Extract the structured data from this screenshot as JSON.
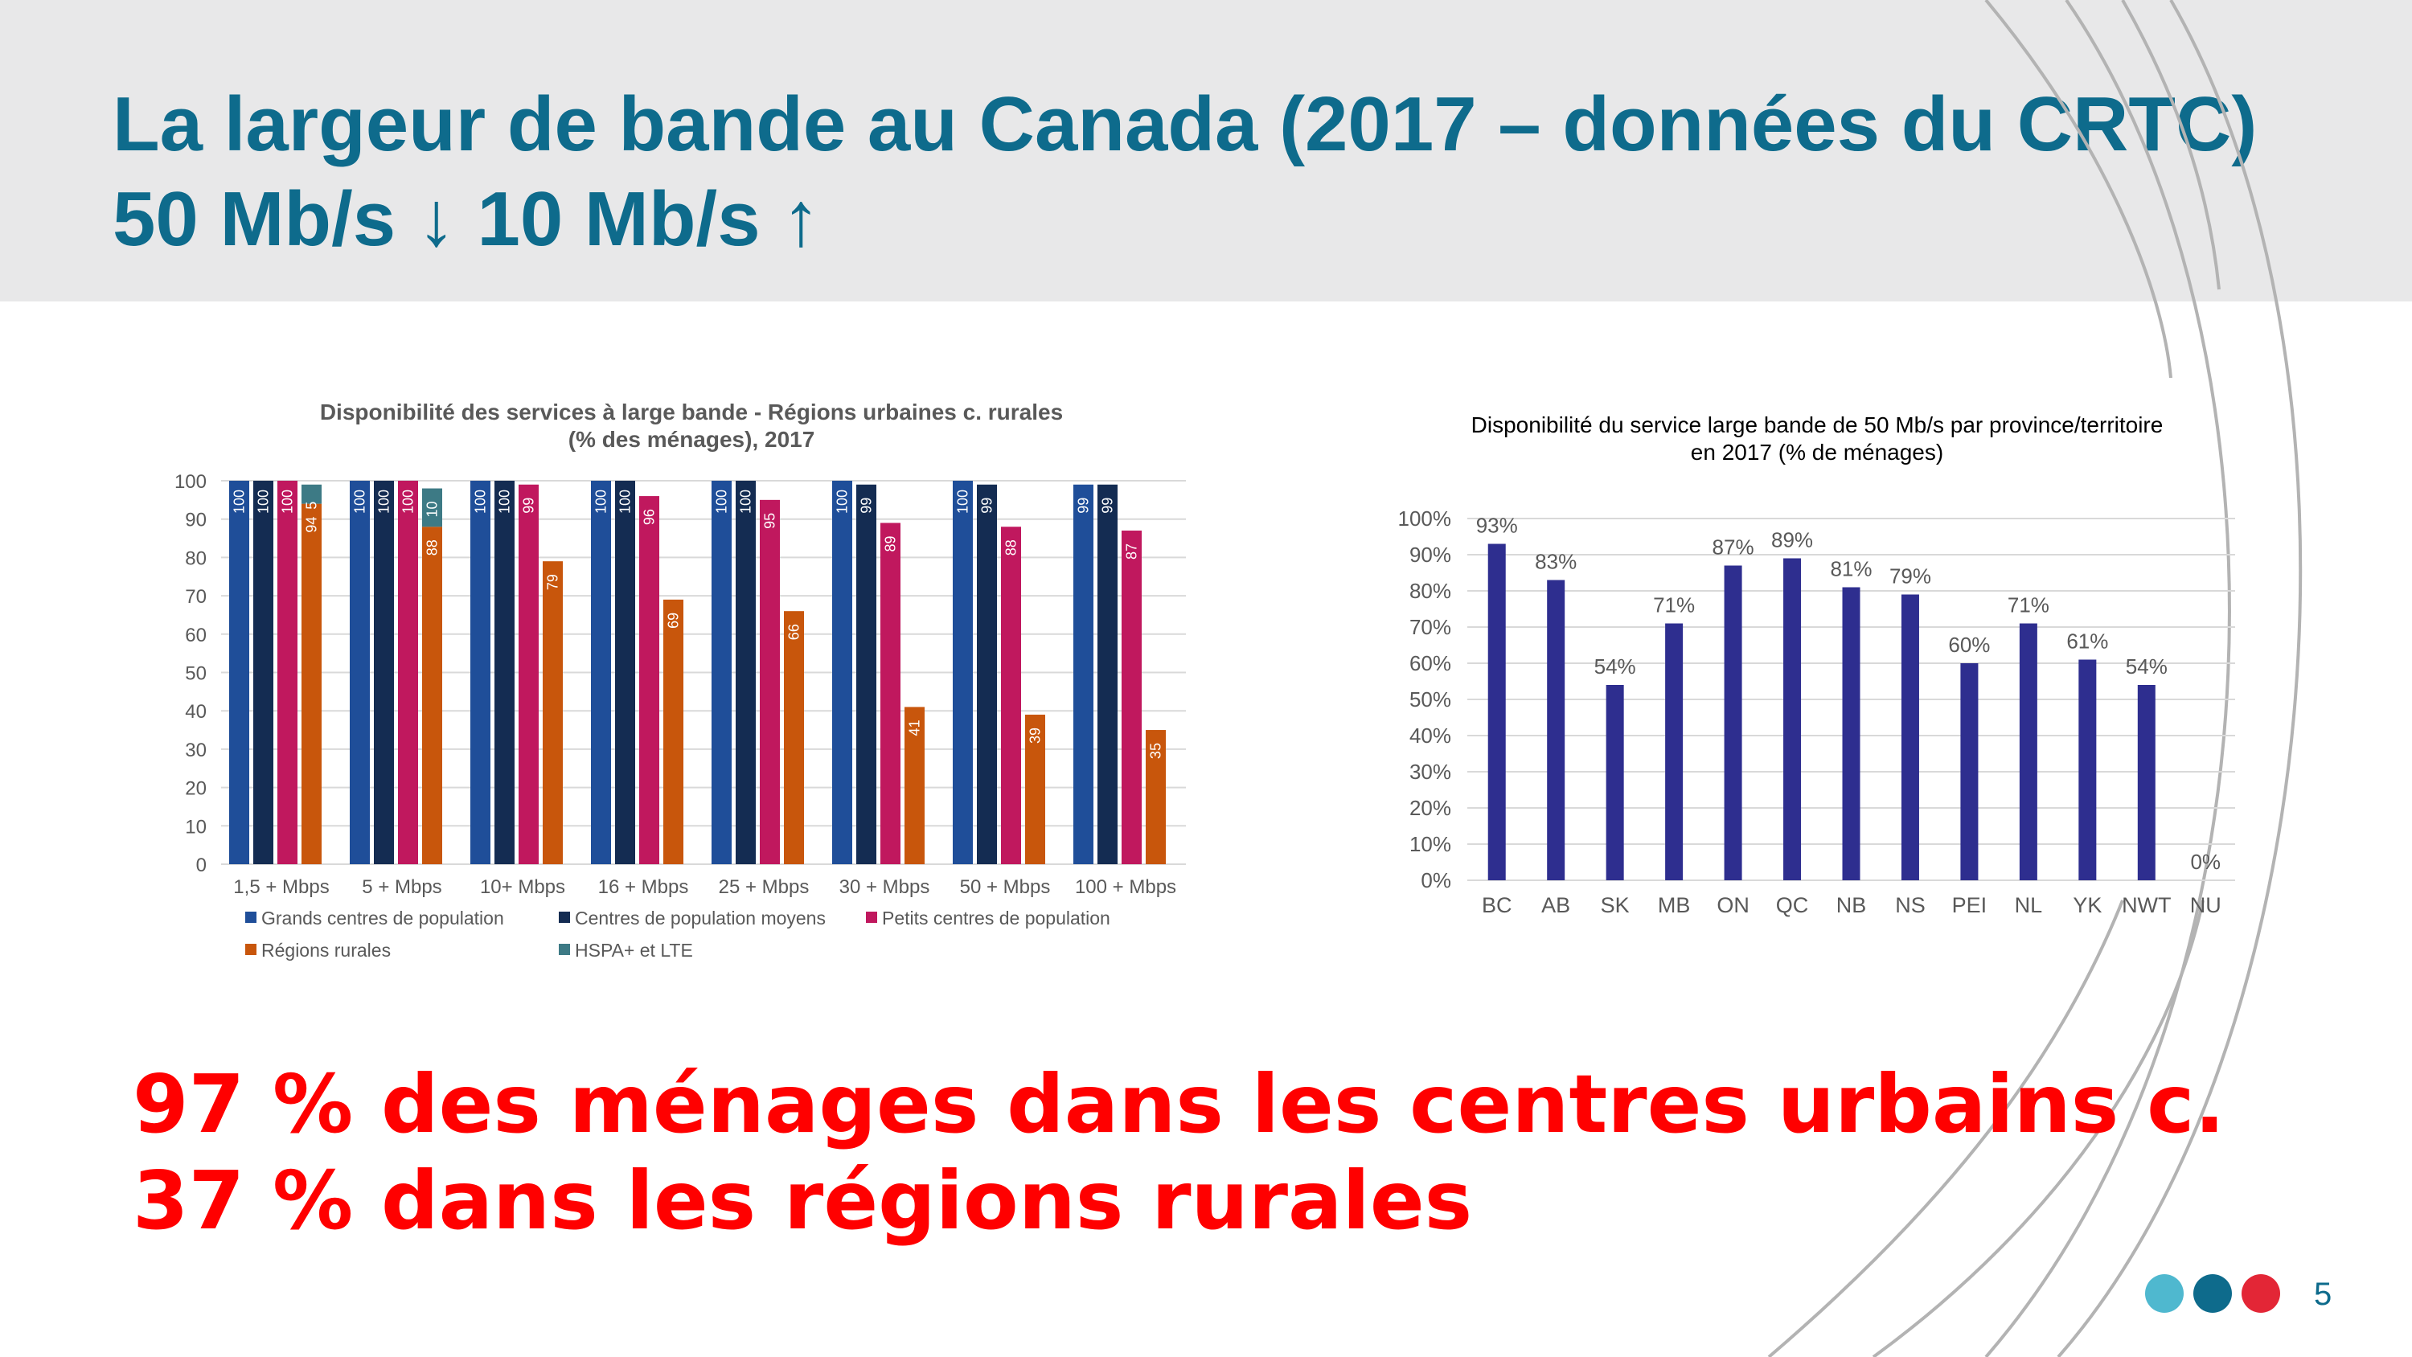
{
  "slide": {
    "title_line1": "La largeur de bande au Canada (2017 – données du CRTC)",
    "title_line2": "50 Mb/s ↓ 10 Mb/s ↑",
    "conclusion_line1": "97 % des ménages dans les centres urbains c.",
    "conclusion_line2": "37 % dans les régions rurales",
    "page_number": "5",
    "colors": {
      "title": "#0e6b8c",
      "header_bg": "#e8e8e9",
      "conclusion": "#ff0000",
      "dots": [
        "#4fb8cf",
        "#0e6b8c",
        "#e32636"
      ]
    }
  },
  "chart_data": [
    {
      "type": "bar",
      "title_line1": "Disponibilité des services à large bande - Régions urbaines c. rurales",
      "title_line2": "(% des ménages), 2017",
      "categories": [
        "1,5 + Mbps",
        "5 + Mbps",
        "10+ Mbps",
        "16 + Mbps",
        "25 + Mbps",
        "30 + Mbps",
        "50 + Mbps",
        "100 + Mbps"
      ],
      "ylim": [
        0,
        100
      ],
      "yticks": [
        0,
        10,
        20,
        30,
        40,
        50,
        60,
        70,
        80,
        90,
        100
      ],
      "grid": true,
      "legend_position": "bottom",
      "series": [
        {
          "name": "Grands centres de population",
          "color": "#1f4e99",
          "values": [
            100,
            100,
            100,
            100,
            100,
            100,
            100,
            99
          ]
        },
        {
          "name": "Centres de population moyens",
          "color": "#142c52",
          "values": [
            100,
            100,
            100,
            100,
            100,
            99,
            99,
            99
          ]
        },
        {
          "name": "Petits centres de population",
          "color": "#c0185e",
          "values": [
            100,
            100,
            99,
            96,
            95,
            89,
            88,
            87
          ]
        },
        {
          "name": "Régions rurales",
          "color": "#c8560c",
          "values": [
            94,
            88,
            79,
            69,
            66,
            41,
            39,
            35
          ]
        },
        {
          "name": "HSPA+ et LTE",
          "color": "#3d7a85",
          "values": [
            5,
            10,
            null,
            null,
            null,
            null,
            null,
            null
          ]
        }
      ]
    },
    {
      "type": "bar",
      "title_line1": "Disponibilité du service large bande de 50 Mb/s par province/territoire",
      "title_line2": "en 2017 (% de ménages)",
      "categories": [
        "BC",
        "AB",
        "SK",
        "MB",
        "ON",
        "QC",
        "NB",
        "NS",
        "PEI",
        "NL",
        "YK",
        "NWT",
        "NU"
      ],
      "values": [
        93,
        83,
        54,
        71,
        87,
        89,
        81,
        79,
        60,
        71,
        61,
        54,
        0
      ],
      "data_labels": [
        "93%",
        "83%",
        "54%",
        "71%",
        "87%",
        "89%",
        "81%",
        "79%",
        "60%",
        "71%",
        "61%",
        "54%",
        "0%"
      ],
      "ylim": [
        0,
        100
      ],
      "yticks": [
        "0%",
        "10%",
        "20%",
        "30%",
        "40%",
        "50%",
        "60%",
        "70%",
        "80%",
        "90%",
        "100%"
      ],
      "grid": true,
      "color": "#2e2e8f"
    }
  ]
}
